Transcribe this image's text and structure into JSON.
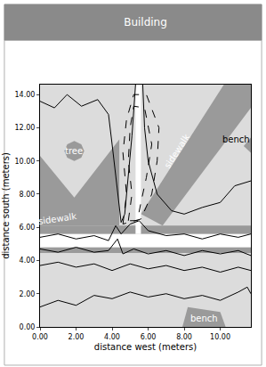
{
  "chart_data": {
    "type": "contour",
    "title": "Building",
    "xlabel": "distance west (meters)",
    "ylabel": "distance south (meters)",
    "xlim": [
      0,
      11.7
    ],
    "ylim": [
      0,
      14.6
    ],
    "xticks": [
      {
        "value": 0,
        "label": "0.00"
      },
      {
        "value": 2,
        "label": "2.00"
      },
      {
        "value": 4,
        "label": "4.00"
      },
      {
        "value": 6,
        "label": "6.00"
      },
      {
        "value": 8,
        "label": "8.00"
      },
      {
        "value": 10,
        "label": "10.00"
      }
    ],
    "yticks": [
      {
        "value": 0,
        "label": "0.00"
      },
      {
        "value": 2,
        "label": "2.00"
      },
      {
        "value": 4,
        "label": "4.00"
      },
      {
        "value": 6,
        "label": "6.00"
      },
      {
        "value": 8,
        "label": "8.00"
      },
      {
        "value": 10,
        "label": "10.00"
      },
      {
        "value": 12,
        "label": "12.00"
      },
      {
        "value": 14,
        "label": "14.00"
      }
    ],
    "grid": false,
    "background": "#dcdcdc",
    "regions": [
      {
        "color": "#9a9a9a",
        "x": [
          0,
          4.4,
          4.4,
          1.9,
          0
        ],
        "y": [
          6.1,
          6.1,
          11.3,
          7.8,
          10.3
        ]
      },
      {
        "color": "#9a9a9a",
        "x": [
          5.6,
          6.8,
          11.7,
          11.7,
          10.2
        ],
        "y": [
          6.8,
          6.1,
          13.2,
          14.6,
          14.6
        ]
      },
      {
        "color": "#9a9a9a",
        "x": [
          0,
          11.7,
          11.7,
          0
        ],
        "y": [
          5.6,
          5.6,
          6.1,
          6.1
        ]
      },
      {
        "color": "#9a9a9a",
        "x": [
          0,
          11.7,
          11.7,
          0
        ],
        "y": [
          4.45,
          4.45,
          4.8,
          4.8
        ]
      },
      {
        "color": "#ffffff",
        "x": [
          0,
          11.7,
          11.7,
          0
        ],
        "y": [
          4.8,
          4.8,
          5.6,
          5.6
        ]
      },
      {
        "color": "#ffffff",
        "x": [
          5.3,
          5.6,
          5.6,
          5.3
        ],
        "y": [
          5.6,
          5.6,
          14.6,
          14.6
        ]
      },
      {
        "color": "#9a9a9a",
        "x": [
          2.45,
          2.29,
          1.9,
          1.51,
          1.35,
          1.51,
          1.9,
          2.29
        ],
        "y": [
          10.6,
          11.0,
          11.2,
          11.0,
          10.6,
          10.2,
          10.0,
          10.2
        ]
      },
      {
        "color": "#9a9a9a",
        "x": [
          7.9,
          10.3,
          10.0,
          8.2
        ],
        "y": [
          0,
          0,
          0.9,
          1.2
        ]
      },
      {
        "color": "#9a9a9a",
        "x": [
          11.3,
          11.7,
          11.7
        ],
        "y": [
          10.9,
          10.5,
          11.4
        ]
      }
    ],
    "series": [
      {
        "color": "#000000",
        "line_style": "solid",
        "x": [
          0,
          0.8,
          1.5,
          2.3,
          3.2,
          3.8,
          4.0,
          4.2,
          4.4,
          4.5,
          4.7,
          4.9,
          5.1,
          5.3
        ],
        "y": [
          13.6,
          13.2,
          14.0,
          13.3,
          13.7,
          12.8,
          11,
          9,
          7,
          6.3,
          6.8,
          9,
          11.5,
          14.6
        ]
      },
      {
        "color": "#000000",
        "line_style": "solid",
        "x": [
          5.7,
          5.8,
          6.0,
          6.5,
          7.3,
          8,
          9,
          10,
          10.8,
          11.7
        ],
        "y": [
          14.6,
          12,
          10,
          8,
          7,
          6.8,
          7.2,
          7.5,
          8.5,
          8.8
        ]
      },
      {
        "color": "#000000",
        "line_style": "solid",
        "x": [
          0,
          1,
          2,
          3,
          3.8,
          4.2,
          4.5,
          5,
          5.5,
          6,
          7,
          8,
          9,
          10,
          11,
          11.7
        ],
        "y": [
          5.4,
          5.6,
          5.3,
          5.5,
          5.2,
          6.1,
          5.6,
          6.2,
          6.4,
          5.8,
          5.5,
          5.6,
          5.3,
          5.6,
          5.4,
          5.6
        ]
      },
      {
        "color": "#000000",
        "line_style": "solid",
        "x": [
          0,
          1,
          2,
          3,
          3.8,
          4.3,
          4.6,
          5.2,
          6,
          7,
          8,
          9,
          10,
          11,
          11.7
        ],
        "y": [
          4.7,
          4.5,
          4.8,
          4.5,
          4.6,
          5.3,
          4.4,
          4.7,
          4.4,
          4.6,
          4.3,
          4.6,
          4.4,
          4.6,
          4.3
        ]
      },
      {
        "color": "#000000",
        "line_style": "solid",
        "x": [
          0,
          1,
          2,
          3,
          4,
          5,
          6,
          7,
          8,
          9,
          10,
          11,
          11.7
        ],
        "y": [
          3.7,
          3.9,
          3.6,
          3.8,
          3.4,
          3.8,
          3.5,
          3.7,
          3.4,
          3.6,
          3.3,
          3.6,
          3.4
        ]
      },
      {
        "color": "#000000",
        "line_style": "solid",
        "x": [
          0,
          1,
          2,
          3,
          4,
          5,
          6,
          7,
          8,
          9,
          10,
          11,
          11.5,
          11.7
        ],
        "y": [
          1.2,
          1.6,
          1.3,
          1.9,
          1.7,
          2.1,
          1.8,
          2.0,
          1.7,
          1.9,
          1.6,
          2.1,
          2.4,
          2.0
        ]
      },
      {
        "color": "#000000",
        "line_style": "dash",
        "x": [
          4.9,
          5.1,
          4.9,
          5.0,
          5.2,
          5.8,
          6.2,
          5.9,
          5.6,
          5.4,
          4.9
        ],
        "y": [
          6.4,
          8,
          10,
          12,
          13.3,
          13.2,
          11,
          9,
          7.5,
          6.4,
          6.4
        ]
      },
      {
        "color": "#000000",
        "line_style": "dash",
        "x": [
          4.6,
          4.8,
          4.6,
          4.8,
          5.2,
          5.9,
          6.6,
          6.5,
          6.2,
          5.6,
          4.6
        ],
        "y": [
          6.2,
          8,
          10.5,
          12.5,
          14,
          14,
          12,
          10,
          8,
          6.5,
          6.2
        ]
      }
    ],
    "annotations": [
      {
        "text": "tree",
        "x": 1.9,
        "y": 10.6,
        "color": "#ffffff"
      },
      {
        "text": "sidewalk",
        "x": 1.0,
        "y": 6.5,
        "color": "#ffffff"
      },
      {
        "text": "sidewalk",
        "x": 7.6,
        "y": 10.6,
        "color": "#ffffff"
      },
      {
        "text": "bench",
        "x": 10.9,
        "y": 11.3,
        "color": "#000000"
      },
      {
        "text": "bench",
        "x": 9.1,
        "y": 0.5,
        "color": "#ffffff"
      }
    ]
  }
}
